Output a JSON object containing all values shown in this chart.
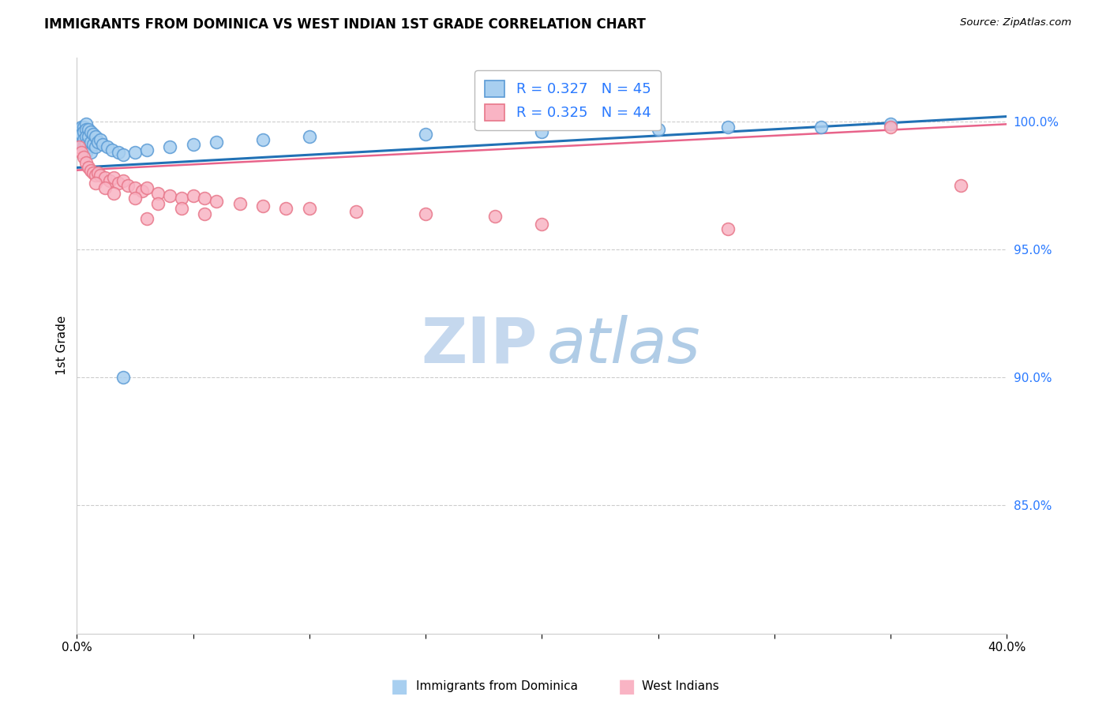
{
  "title": "IMMIGRANTS FROM DOMINICA VS WEST INDIAN 1ST GRADE CORRELATION CHART",
  "source": "Source: ZipAtlas.com",
  "ylabel": "1st Grade",
  "ylabel_right_ticks": [
    "100.0%",
    "95.0%",
    "90.0%",
    "85.0%"
  ],
  "ylabel_right_vals": [
    1.0,
    0.95,
    0.9,
    0.85
  ],
  "legend1_r": "R = 0.327",
  "legend1_n": "N = 45",
  "legend2_r": "R = 0.325",
  "legend2_n": "N = 44",
  "trendline1_color": "#2171b5",
  "trendline2_color": "#e8638a",
  "scatter1_face": "#a8cff0",
  "scatter1_edge": "#5b9bd5",
  "scatter2_face": "#f9b4c4",
  "scatter2_edge": "#e8778a",
  "watermark_zip_color": "#c8dff0",
  "watermark_atlas_color": "#b0cde8",
  "xlim": [
    0.0,
    0.4
  ],
  "ylim": [
    0.8,
    1.025
  ],
  "grid_color": "#cccccc",
  "blue_points_x": [
    0.001,
    0.001,
    0.002,
    0.002,
    0.002,
    0.003,
    0.003,
    0.003,
    0.003,
    0.004,
    0.004,
    0.004,
    0.004,
    0.004,
    0.005,
    0.005,
    0.005,
    0.006,
    0.006,
    0.006,
    0.007,
    0.007,
    0.008,
    0.008,
    0.009,
    0.01,
    0.011,
    0.013,
    0.015,
    0.018,
    0.02,
    0.025,
    0.03,
    0.04,
    0.05,
    0.06,
    0.08,
    0.1,
    0.15,
    0.2,
    0.25,
    0.28,
    0.32,
    0.35,
    0.02
  ],
  "blue_points_y": [
    0.997,
    0.994,
    0.998,
    0.995,
    0.991,
    0.998,
    0.996,
    0.993,
    0.99,
    0.999,
    0.997,
    0.994,
    0.991,
    0.988,
    0.997,
    0.994,
    0.99,
    0.996,
    0.992,
    0.988,
    0.995,
    0.991,
    0.994,
    0.99,
    0.992,
    0.993,
    0.991,
    0.99,
    0.989,
    0.988,
    0.987,
    0.988,
    0.989,
    0.99,
    0.991,
    0.992,
    0.993,
    0.994,
    0.995,
    0.996,
    0.997,
    0.998,
    0.998,
    0.999,
    0.9
  ],
  "pink_points_x": [
    0.001,
    0.002,
    0.003,
    0.004,
    0.005,
    0.006,
    0.007,
    0.008,
    0.009,
    0.01,
    0.012,
    0.014,
    0.016,
    0.018,
    0.02,
    0.022,
    0.025,
    0.028,
    0.03,
    0.035,
    0.04,
    0.045,
    0.05,
    0.055,
    0.06,
    0.07,
    0.08,
    0.09,
    0.1,
    0.12,
    0.15,
    0.18,
    0.008,
    0.012,
    0.016,
    0.025,
    0.035,
    0.045,
    0.055,
    0.03,
    0.2,
    0.28,
    0.35,
    0.38
  ],
  "pink_points_y": [
    0.99,
    0.988,
    0.986,
    0.984,
    0.982,
    0.981,
    0.98,
    0.979,
    0.98,
    0.979,
    0.978,
    0.977,
    0.978,
    0.976,
    0.977,
    0.975,
    0.974,
    0.973,
    0.974,
    0.972,
    0.971,
    0.97,
    0.971,
    0.97,
    0.969,
    0.968,
    0.967,
    0.966,
    0.966,
    0.965,
    0.964,
    0.963,
    0.976,
    0.974,
    0.972,
    0.97,
    0.968,
    0.966,
    0.964,
    0.962,
    0.96,
    0.958,
    0.998,
    0.975
  ]
}
